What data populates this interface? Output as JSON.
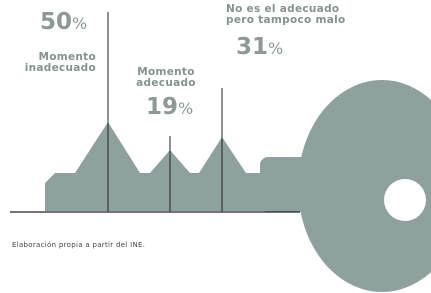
{
  "chart_data": {
    "type": "bar",
    "categories": [
      "Momento\ninadecuado",
      "Momento\nadecuado",
      "No es el adecuado\npero tampoco malo"
    ],
    "values": [
      50,
      19,
      31
    ],
    "value_labels": [
      "50%",
      "19%",
      "31%"
    ],
    "color": "#222222"
  },
  "source": "Elaboración propia a partir del INE."
}
